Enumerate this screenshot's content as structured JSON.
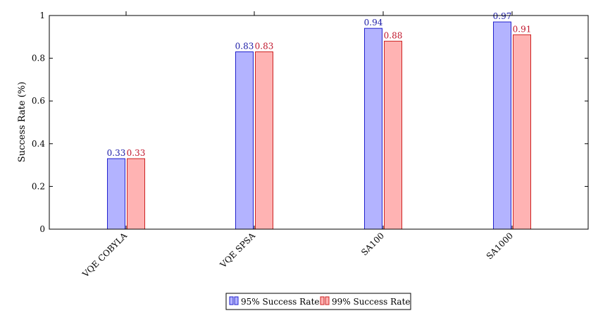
{
  "chart_data": {
    "type": "bar",
    "categories": [
      "VQE COBYLA",
      "VQE SPSA",
      "SA100",
      "SA1000"
    ],
    "series": [
      {
        "name": "95% Success Rate",
        "values": [
          0.33,
          0.83,
          0.94,
          0.97
        ],
        "fill": "#b3b3ff",
        "stroke": "#2222cc",
        "label_color": "#1a1aa6"
      },
      {
        "name": "99% Success Rate",
        "values": [
          0.33,
          0.83,
          0.88,
          0.91
        ],
        "fill": "#ffb3b3",
        "stroke": "#cc2222",
        "label_color": "#c0142a"
      }
    ],
    "xlabel": "",
    "ylabel": "Success Rate (%)",
    "ylim": [
      0,
      1
    ],
    "yticks": [
      "0",
      "0.2",
      "0.4",
      "0.6",
      "0.8",
      "1"
    ],
    "grid": false,
    "legend_position": "bottom-center",
    "data_labels": [
      [
        "0.33",
        "0.83",
        "0.94",
        "0.97"
      ],
      [
        "0.33",
        "0.83",
        "0.88",
        "0.91"
      ]
    ]
  }
}
